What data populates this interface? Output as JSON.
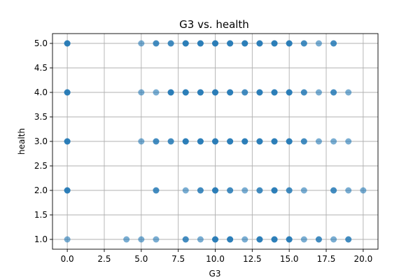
{
  "chart_data": {
    "type": "scatter",
    "title": "G3 vs. health",
    "xlabel": "G3",
    "ylabel": "health",
    "xlim": [
      -1,
      21
    ],
    "ylim": [
      0.8,
      5.2
    ],
    "x_ticks": [
      0.0,
      2.5,
      5.0,
      7.5,
      10.0,
      12.5,
      15.0,
      17.5,
      20.0
    ],
    "x_tick_labels": [
      "0.0",
      "2.5",
      "5.0",
      "7.5",
      "10.0",
      "12.5",
      "15.0",
      "17.5",
      "20.0"
    ],
    "y_ticks": [
      1.0,
      1.5,
      2.0,
      2.5,
      3.0,
      3.5,
      4.0,
      4.5,
      5.0
    ],
    "y_tick_labels": [
      "1.0",
      "1.5",
      "2.0",
      "2.5",
      "3.0",
      "3.5",
      "4.0",
      "4.5",
      "5.0"
    ],
    "grid": true,
    "point_color": "#1f77b4",
    "point_alpha": 0.6,
    "points": [
      {
        "health": 5,
        "g3": [
          0,
          0,
          0,
          5,
          6,
          6,
          7,
          7,
          8,
          8,
          8,
          9,
          9,
          9,
          10,
          10,
          10,
          11,
          11,
          11,
          12,
          12,
          12,
          13,
          13,
          13,
          14,
          14,
          14,
          15,
          15,
          15,
          16,
          16,
          17,
          18,
          18
        ]
      },
      {
        "health": 4,
        "g3": [
          0,
          0,
          0,
          5,
          6,
          7,
          7,
          7,
          8,
          8,
          8,
          9,
          9,
          9,
          10,
          10,
          10,
          11,
          11,
          11,
          12,
          12,
          13,
          13,
          13,
          14,
          14,
          14,
          15,
          15,
          15,
          16,
          16,
          17,
          18,
          18,
          19
        ]
      },
      {
        "health": 3,
        "g3": [
          0,
          0,
          0,
          5,
          6,
          6,
          7,
          7,
          8,
          8,
          8,
          9,
          9,
          9,
          10,
          10,
          10,
          11,
          11,
          11,
          12,
          12,
          12,
          13,
          13,
          13,
          14,
          14,
          14,
          15,
          15,
          15,
          16,
          16,
          17,
          18,
          19
        ]
      },
      {
        "health": 2,
        "g3": [
          0,
          0,
          0,
          6,
          6,
          8,
          9,
          9,
          10,
          10,
          10,
          11,
          11,
          12,
          13,
          13,
          14,
          14,
          14,
          15,
          15,
          16,
          18,
          18,
          19,
          20
        ]
      },
      {
        "health": 1,
        "g3": [
          0,
          4,
          5,
          6,
          8,
          8,
          9,
          10,
          10,
          10,
          11,
          11,
          11,
          12,
          13,
          13,
          13,
          14,
          14,
          14,
          15,
          15,
          15,
          16,
          17,
          17,
          18,
          19,
          19
        ]
      }
    ]
  }
}
